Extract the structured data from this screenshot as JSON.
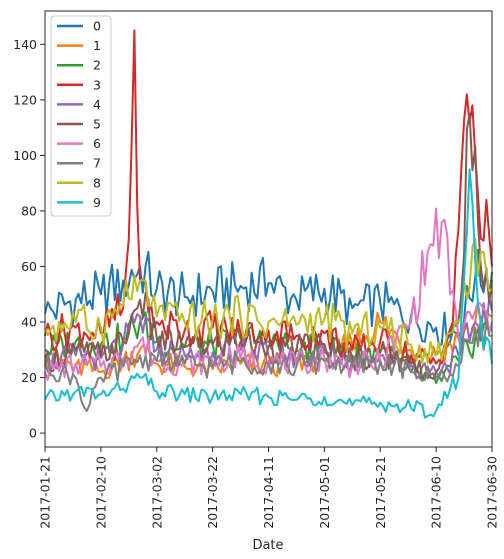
{
  "chart_data": {
    "type": "line",
    "title": "",
    "xlabel": "Date",
    "ylabel": "",
    "x_range": [
      "2017-01-21",
      "2017-06-30"
    ],
    "ylim": [
      -5,
      152
    ],
    "x_ticks": [
      "2017-01-21",
      "2017-02-10",
      "2017-03-02",
      "2017-03-22",
      "2017-04-11",
      "2017-05-01",
      "2017-05-21",
      "2017-06-10",
      "2017-06-30"
    ],
    "y_ticks": [
      0,
      20,
      40,
      60,
      80,
      100,
      120,
      140
    ],
    "grid": false,
    "legend_position": "top-left",
    "series": [
      {
        "name": "0",
        "color": "#1f77b4",
        "points": [
          [
            "2017-01-21",
            43
          ],
          [
            "2017-02-01",
            48
          ],
          [
            "2017-02-10",
            50
          ],
          [
            "2017-02-18",
            55
          ],
          [
            "2017-02-24",
            60
          ],
          [
            "2017-03-02",
            52
          ],
          [
            "2017-03-12",
            49
          ],
          [
            "2017-03-22",
            51
          ],
          [
            "2017-04-01",
            53
          ],
          [
            "2017-04-11",
            54
          ],
          [
            "2017-04-21",
            48
          ],
          [
            "2017-05-01",
            52
          ],
          [
            "2017-05-11",
            45
          ],
          [
            "2017-05-21",
            47
          ],
          [
            "2017-06-01",
            42
          ],
          [
            "2017-06-10",
            38
          ],
          [
            "2017-06-18",
            36
          ],
          [
            "2017-06-24",
            56
          ],
          [
            "2017-06-30",
            58
          ]
        ]
      },
      {
        "name": "1",
        "color": "#ff7f0e",
        "points": [
          [
            "2017-01-21",
            28
          ],
          [
            "2017-02-01",
            24
          ],
          [
            "2017-02-10",
            22
          ],
          [
            "2017-02-18",
            26
          ],
          [
            "2017-02-24",
            30
          ],
          [
            "2017-03-02",
            25
          ],
          [
            "2017-03-12",
            24
          ],
          [
            "2017-03-22",
            23
          ],
          [
            "2017-04-01",
            25
          ],
          [
            "2017-04-11",
            24
          ],
          [
            "2017-04-21",
            26
          ],
          [
            "2017-05-01",
            27
          ],
          [
            "2017-05-11",
            32
          ],
          [
            "2017-05-21",
            40
          ],
          [
            "2017-06-01",
            30
          ],
          [
            "2017-06-10",
            28
          ],
          [
            "2017-06-18",
            34
          ],
          [
            "2017-06-24",
            40
          ],
          [
            "2017-06-30",
            42
          ]
        ]
      },
      {
        "name": "2",
        "color": "#2ca02c",
        "points": [
          [
            "2017-01-21",
            30
          ],
          [
            "2017-02-01",
            33
          ],
          [
            "2017-02-10",
            32
          ],
          [
            "2017-02-18",
            34
          ],
          [
            "2017-02-24",
            40
          ],
          [
            "2017-03-02",
            33
          ],
          [
            "2017-03-12",
            31
          ],
          [
            "2017-03-22",
            32
          ],
          [
            "2017-04-01",
            34
          ],
          [
            "2017-04-11",
            33
          ],
          [
            "2017-04-21",
            30
          ],
          [
            "2017-05-01",
            31
          ],
          [
            "2017-05-11",
            28
          ],
          [
            "2017-05-21",
            30
          ],
          [
            "2017-06-01",
            22
          ],
          [
            "2017-06-10",
            18
          ],
          [
            "2017-06-18",
            26
          ],
          [
            "2017-06-24",
            34
          ],
          [
            "2017-06-30",
            38
          ]
        ]
      },
      {
        "name": "3",
        "color": "#d62728",
        "points": [
          [
            "2017-01-21",
            35
          ],
          [
            "2017-02-01",
            38
          ],
          [
            "2017-02-10",
            36
          ],
          [
            "2017-02-18",
            45
          ],
          [
            "2017-02-20",
            70
          ],
          [
            "2017-02-22",
            145
          ],
          [
            "2017-02-24",
            55
          ],
          [
            "2017-03-02",
            40
          ],
          [
            "2017-03-12",
            37
          ],
          [
            "2017-03-22",
            38
          ],
          [
            "2017-04-01",
            36
          ],
          [
            "2017-04-11",
            37
          ],
          [
            "2017-04-21",
            35
          ],
          [
            "2017-05-01",
            36
          ],
          [
            "2017-05-11",
            30
          ],
          [
            "2017-05-21",
            33
          ],
          [
            "2017-06-01",
            28
          ],
          [
            "2017-06-10",
            25
          ],
          [
            "2017-06-16",
            40
          ],
          [
            "2017-06-19",
            95
          ],
          [
            "2017-06-21",
            122
          ],
          [
            "2017-06-23",
            118
          ],
          [
            "2017-06-26",
            70
          ],
          [
            "2017-06-28",
            84
          ],
          [
            "2017-06-30",
            60
          ]
        ]
      },
      {
        "name": "4",
        "color": "#9467bd",
        "points": [
          [
            "2017-01-21",
            25
          ],
          [
            "2017-02-01",
            28
          ],
          [
            "2017-02-10",
            27
          ],
          [
            "2017-02-18",
            32
          ],
          [
            "2017-02-24",
            42
          ],
          [
            "2017-03-02",
            30
          ],
          [
            "2017-03-12",
            28
          ],
          [
            "2017-03-22",
            29
          ],
          [
            "2017-04-01",
            30
          ],
          [
            "2017-04-11",
            28
          ],
          [
            "2017-04-21",
            27
          ],
          [
            "2017-05-01",
            29
          ],
          [
            "2017-05-11",
            26
          ],
          [
            "2017-05-21",
            28
          ],
          [
            "2017-06-01",
            24
          ],
          [
            "2017-06-10",
            22
          ],
          [
            "2017-06-18",
            28
          ],
          [
            "2017-06-24",
            40
          ],
          [
            "2017-06-30",
            44
          ]
        ]
      },
      {
        "name": "5",
        "color": "#8c564b",
        "points": [
          [
            "2017-01-21",
            26
          ],
          [
            "2017-02-01",
            30
          ],
          [
            "2017-02-10",
            28
          ],
          [
            "2017-02-18",
            33
          ],
          [
            "2017-02-24",
            48
          ],
          [
            "2017-03-02",
            34
          ],
          [
            "2017-03-12",
            31
          ],
          [
            "2017-03-22",
            32
          ],
          [
            "2017-04-01",
            33
          ],
          [
            "2017-04-11",
            31
          ],
          [
            "2017-04-21",
            30
          ],
          [
            "2017-05-01",
            32
          ],
          [
            "2017-05-11",
            27
          ],
          [
            "2017-05-21",
            29
          ],
          [
            "2017-06-01",
            25
          ],
          [
            "2017-06-10",
            22
          ],
          [
            "2017-06-18",
            40
          ],
          [
            "2017-06-22",
            115
          ],
          [
            "2017-06-26",
            60
          ],
          [
            "2017-06-30",
            55
          ]
        ]
      },
      {
        "name": "6",
        "color": "#e377c2",
        "points": [
          [
            "2017-01-21",
            22
          ],
          [
            "2017-02-01",
            25
          ],
          [
            "2017-02-10",
            24
          ],
          [
            "2017-02-18",
            27
          ],
          [
            "2017-02-24",
            33
          ],
          [
            "2017-03-02",
            26
          ],
          [
            "2017-03-12",
            25
          ],
          [
            "2017-03-22",
            26
          ],
          [
            "2017-04-01",
            27
          ],
          [
            "2017-04-11",
            26
          ],
          [
            "2017-04-21",
            25
          ],
          [
            "2017-05-01",
            27
          ],
          [
            "2017-05-11",
            24
          ],
          [
            "2017-05-21",
            26
          ],
          [
            "2017-06-01",
            40
          ],
          [
            "2017-06-08",
            68
          ],
          [
            "2017-06-12",
            76
          ],
          [
            "2017-06-18",
            34
          ],
          [
            "2017-06-24",
            44
          ],
          [
            "2017-06-30",
            40
          ]
        ]
      },
      {
        "name": "7",
        "color": "#7f7f7f",
        "points": [
          [
            "2017-01-21",
            24
          ],
          [
            "2017-02-01",
            20
          ],
          [
            "2017-02-05",
            8
          ],
          [
            "2017-02-10",
            20
          ],
          [
            "2017-02-18",
            24
          ],
          [
            "2017-02-24",
            28
          ],
          [
            "2017-03-02",
            26
          ],
          [
            "2017-03-12",
            25
          ],
          [
            "2017-03-22",
            24
          ],
          [
            "2017-04-01",
            26
          ],
          [
            "2017-04-11",
            25
          ],
          [
            "2017-04-21",
            24
          ],
          [
            "2017-05-01",
            26
          ],
          [
            "2017-05-11",
            24
          ],
          [
            "2017-05-21",
            26
          ],
          [
            "2017-06-01",
            22
          ],
          [
            "2017-06-10",
            20
          ],
          [
            "2017-06-18",
            24
          ],
          [
            "2017-06-24",
            38
          ],
          [
            "2017-06-30",
            35
          ]
        ]
      },
      {
        "name": "8",
        "color": "#bcbd22",
        "points": [
          [
            "2017-01-21",
            38
          ],
          [
            "2017-02-01",
            40
          ],
          [
            "2017-02-10",
            38
          ],
          [
            "2017-02-18",
            46
          ],
          [
            "2017-02-24",
            55
          ],
          [
            "2017-03-02",
            42
          ],
          [
            "2017-03-12",
            40
          ],
          [
            "2017-03-22",
            41
          ],
          [
            "2017-04-01",
            42
          ],
          [
            "2017-04-11",
            40
          ],
          [
            "2017-04-21",
            39
          ],
          [
            "2017-05-01",
            41
          ],
          [
            "2017-05-11",
            36
          ],
          [
            "2017-05-21",
            38
          ],
          [
            "2017-06-01",
            32
          ],
          [
            "2017-06-10",
            28
          ],
          [
            "2017-06-18",
            40
          ],
          [
            "2017-06-24",
            70
          ],
          [
            "2017-06-30",
            52
          ]
        ]
      },
      {
        "name": "9",
        "color": "#17becf",
        "points": [
          [
            "2017-01-21",
            12
          ],
          [
            "2017-02-01",
            15
          ],
          [
            "2017-02-10",
            14
          ],
          [
            "2017-02-18",
            16
          ],
          [
            "2017-02-24",
            20
          ],
          [
            "2017-03-02",
            15
          ],
          [
            "2017-03-12",
            14
          ],
          [
            "2017-03-22",
            13
          ],
          [
            "2017-04-01",
            14
          ],
          [
            "2017-04-11",
            13
          ],
          [
            "2017-04-21",
            12
          ],
          [
            "2017-05-01",
            13
          ],
          [
            "2017-05-11",
            10
          ],
          [
            "2017-05-21",
            11
          ],
          [
            "2017-06-01",
            9
          ],
          [
            "2017-06-10",
            8
          ],
          [
            "2017-06-18",
            20
          ],
          [
            "2017-06-22",
            95
          ],
          [
            "2017-06-26",
            40
          ],
          [
            "2017-06-30",
            25
          ]
        ]
      }
    ]
  }
}
